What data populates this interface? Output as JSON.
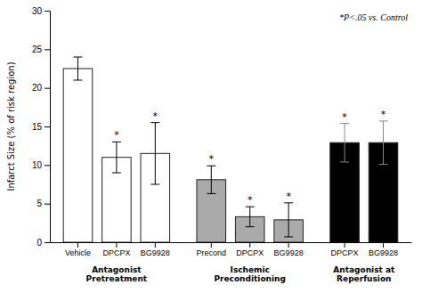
{
  "chart_data": {
    "type": "bar",
    "ylabel": "Infarct Size (% of risk region)",
    "ylim": [
      0,
      30
    ],
    "yticks": [
      0,
      5,
      10,
      15,
      20,
      25,
      30
    ],
    "annotation": "*P<.05 vs. Control",
    "groups": [
      {
        "label": "Antagonist\nPretreatment",
        "color": "white",
        "categories": [
          "Vehicle",
          "DPCPX",
          "BG9928"
        ],
        "values": [
          22.5,
          11.0,
          11.5
        ],
        "errors": [
          1.5,
          2.0,
          4.0
        ],
        "significance": [
          null,
          "*",
          "*"
        ]
      },
      {
        "label": "Ischemic\nPreconditioning",
        "color": "#aaaaaa",
        "categories": [
          "Precond",
          "DPCPX",
          "BG9928"
        ],
        "values": [
          8.1,
          3.3,
          2.9
        ],
        "errors": [
          1.8,
          1.3,
          2.2
        ],
        "significance": [
          "*",
          "*",
          "*"
        ]
      },
      {
        "label": "Antagonist at\nReperfusion",
        "color": "black",
        "categories": [
          "DPCPX",
          "BG9928"
        ],
        "values": [
          12.9,
          12.9
        ],
        "errors": [
          2.5,
          2.8
        ],
        "significance": [
          "*",
          "*"
        ]
      }
    ]
  }
}
